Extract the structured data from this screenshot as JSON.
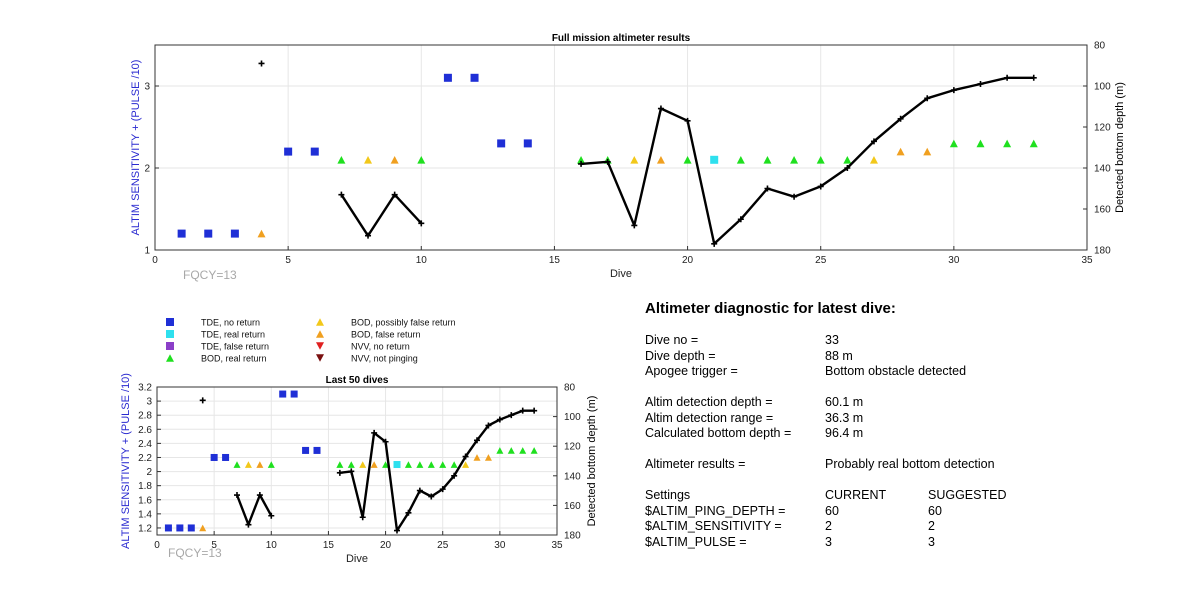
{
  "chart_data": [
    {
      "type": "scatter",
      "title": "Full mission altimeter results",
      "xlabel": "Dive",
      "ylabel": "ALTIM SENSITIVITY + (PULSE /10)",
      "y2label": "Detected bottom depth (m)",
      "xlim": [
        0,
        35
      ],
      "ylim": [
        1,
        3.5
      ],
      "y2lim": [
        180,
        80
      ],
      "y2reversed": true,
      "xticks": [
        0,
        5,
        10,
        15,
        20,
        25,
        30,
        35
      ],
      "yticks": [
        1,
        2,
        3
      ],
      "y2ticks": [
        80,
        100,
        120,
        140,
        160,
        180
      ],
      "grid": true,
      "annotation": "FQCY=13"
    },
    {
      "type": "scatter",
      "title": "Last 50 dives",
      "xlabel": "Dive",
      "ylabel": "ALTIM SENSITIVITY + (PULSE /10)",
      "y2label": "Detected bottom depth (m)",
      "xlim": [
        0,
        35
      ],
      "ylim": [
        1.1,
        3.2
      ],
      "y2lim": [
        180,
        80
      ],
      "y2reversed": true,
      "xticks": [
        0,
        5,
        10,
        15,
        20,
        25,
        30,
        35
      ],
      "yticks": [
        1.2,
        1.4,
        1.6,
        1.8,
        2,
        2.2,
        2.4,
        2.6,
        2.8,
        3,
        3.2
      ],
      "y2ticks": [
        80,
        100,
        120,
        140,
        160,
        180
      ],
      "grid": true,
      "annotation": "FQCY=13"
    }
  ],
  "series_data": {
    "points": [
      {
        "x": 1,
        "y": 1.2,
        "cat": "tde_no"
      },
      {
        "x": 2,
        "y": 1.2,
        "cat": "tde_no"
      },
      {
        "x": 3,
        "y": 1.2,
        "cat": "tde_no"
      },
      {
        "x": 4,
        "y": 1.2,
        "cat": "bod_false"
      },
      {
        "x": 5,
        "y": 2.2,
        "cat": "tde_no"
      },
      {
        "x": 6,
        "y": 2.2,
        "cat": "tde_no"
      },
      {
        "x": 7,
        "y": 2.1,
        "cat": "bod_real"
      },
      {
        "x": 8,
        "y": 2.1,
        "cat": "bod_possibly"
      },
      {
        "x": 9,
        "y": 2.1,
        "cat": "bod_false"
      },
      {
        "x": 10,
        "y": 2.1,
        "cat": "bod_real"
      },
      {
        "x": 11,
        "y": 3.1,
        "cat": "tde_no"
      },
      {
        "x": 12,
        "y": 3.1,
        "cat": "tde_no"
      },
      {
        "x": 13,
        "y": 2.3,
        "cat": "tde_no"
      },
      {
        "x": 14,
        "y": 2.3,
        "cat": "tde_no"
      },
      {
        "x": 16,
        "y": 2.1,
        "cat": "bod_real"
      },
      {
        "x": 17,
        "y": 2.1,
        "cat": "bod_real"
      },
      {
        "x": 18,
        "y": 2.1,
        "cat": "bod_possibly"
      },
      {
        "x": 19,
        "y": 2.1,
        "cat": "bod_false"
      },
      {
        "x": 20,
        "y": 2.1,
        "cat": "bod_real"
      },
      {
        "x": 21,
        "y": 2.1,
        "cat": "tde_real"
      },
      {
        "x": 22,
        "y": 2.1,
        "cat": "bod_real"
      },
      {
        "x": 23,
        "y": 2.1,
        "cat": "bod_real"
      },
      {
        "x": 24,
        "y": 2.1,
        "cat": "bod_real"
      },
      {
        "x": 25,
        "y": 2.1,
        "cat": "bod_real"
      },
      {
        "x": 26,
        "y": 2.1,
        "cat": "bod_real"
      },
      {
        "x": 27,
        "y": 2.1,
        "cat": "bod_possibly"
      },
      {
        "x": 28,
        "y": 2.2,
        "cat": "bod_false"
      },
      {
        "x": 29,
        "y": 2.2,
        "cat": "bod_false"
      },
      {
        "x": 30,
        "y": 2.3,
        "cat": "bod_real"
      },
      {
        "x": 31,
        "y": 2.3,
        "cat": "bod_real"
      },
      {
        "x": 32,
        "y": 2.3,
        "cat": "bod_real"
      },
      {
        "x": 33,
        "y": 2.3,
        "cat": "bod_real"
      }
    ],
    "depth_segments": [
      [
        {
          "x": 4,
          "d": 89
        }
      ],
      [
        {
          "x": 7,
          "d": 153
        },
        {
          "x": 8,
          "d": 173
        },
        {
          "x": 9,
          "d": 153
        },
        {
          "x": 10,
          "d": 167
        }
      ],
      [
        {
          "x": 16,
          "d": 138
        },
        {
          "x": 17,
          "d": 137
        },
        {
          "x": 18,
          "d": 168
        },
        {
          "x": 19,
          "d": 111
        },
        {
          "x": 20,
          "d": 117
        },
        {
          "x": 21,
          "d": 177
        },
        {
          "x": 22,
          "d": 165
        },
        {
          "x": 23,
          "d": 150
        },
        {
          "x": 24,
          "d": 154
        },
        {
          "x": 25,
          "d": 149
        },
        {
          "x": 26,
          "d": 140
        },
        {
          "x": 27,
          "d": 127
        },
        {
          "x": 28,
          "d": 116
        },
        {
          "x": 29,
          "d": 106
        },
        {
          "x": 30,
          "d": 102
        },
        {
          "x": 31,
          "d": 99
        },
        {
          "x": 32,
          "d": 96
        },
        {
          "x": 33,
          "d": 96
        }
      ]
    ]
  },
  "legend": [
    {
      "key": "tde_no",
      "label": "TDE, no return",
      "shape": "square",
      "color": "#1f2fd6"
    },
    {
      "key": "tde_real",
      "label": "TDE, real return",
      "shape": "square",
      "color": "#2ee0ee"
    },
    {
      "key": "tde_false",
      "label": "TDE, false return",
      "shape": "square",
      "color": "#8b3fc8"
    },
    {
      "key": "bod_real",
      "label": "BOD, real return",
      "shape": "up",
      "color": "#1fe01f"
    },
    {
      "key": "bod_possibly",
      "label": "BOD, possibly false return",
      "shape": "up",
      "color": "#f2c81a"
    },
    {
      "key": "bod_false",
      "label": "BOD, false return",
      "shape": "up",
      "color": "#f0a020"
    },
    {
      "key": "nvv_no",
      "label": "NVV, no return",
      "shape": "down",
      "color": "#e02020"
    },
    {
      "key": "nvv_not",
      "label": "NVV, not pinging",
      "shape": "down",
      "color": "#7a1010"
    }
  ],
  "colors": {
    "left_axis": "#2a2ad0",
    "depth_line": "#000000"
  },
  "diagnostic": {
    "title": "Altimeter diagnostic for latest dive:",
    "dive_no_label": "Dive no =",
    "dive_no": "33",
    "dive_depth_label": "Dive depth =",
    "dive_depth": "88 m",
    "apogee_label": "Apogee trigger =",
    "apogee": "Bottom obstacle detected",
    "det_depth_label": "Altim detection depth =",
    "det_depth": "60.1 m",
    "det_range_label": "Altim detection range =",
    "det_range": "36.3 m",
    "calc_depth_label": "Calculated bottom depth =",
    "calc_depth": "96.4 m",
    "results_label": "Altimeter results =",
    "results": "Probably real bottom detection",
    "settings_label": "Settings",
    "current_label": "CURRENT",
    "suggested_label": "SUGGESTED",
    "ping_label": "$ALTIM_PING_DEPTH =",
    "ping_current": "60",
    "ping_suggested": "60",
    "sens_label": "$ALTIM_SENSITIVITY =",
    "sens_current": "2",
    "sens_suggested": "2",
    "pulse_label": "$ALTIM_PULSE =",
    "pulse_current": "3",
    "pulse_suggested": "3"
  }
}
